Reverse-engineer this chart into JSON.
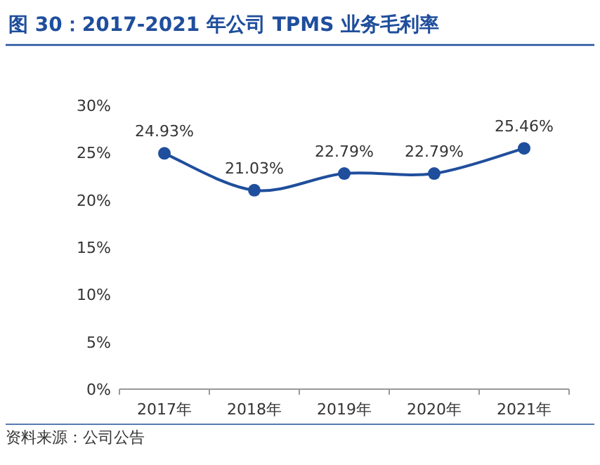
{
  "chart_data": {
    "type": "line",
    "title": "图 30：2017-2021 年公司 TPMS 业务毛利率",
    "categories": [
      "2017年",
      "2018年",
      "2019年",
      "2020年",
      "2021年"
    ],
    "series": [
      {
        "color": "#1f4e9c",
        "values": [
          24.93,
          21.03,
          22.79,
          22.79,
          25.46
        ],
        "value_labels": [
          "24.93%",
          "21.03%",
          "22.79%",
          "22.79%",
          "25.46%"
        ]
      }
    ],
    "ylim": [
      0,
      30
    ],
    "yticks": [
      {
        "value": 0,
        "label": "0%"
      },
      {
        "value": 5,
        "label": "5%"
      },
      {
        "value": 10,
        "label": "10%"
      },
      {
        "value": 15,
        "label": "15%"
      },
      {
        "value": 20,
        "label": "20%"
      },
      {
        "value": 25,
        "label": "25%"
      },
      {
        "value": 30,
        "label": "30%"
      }
    ],
    "marker": "circle",
    "annotations": [
      "资料来源：公司公告"
    ]
  }
}
